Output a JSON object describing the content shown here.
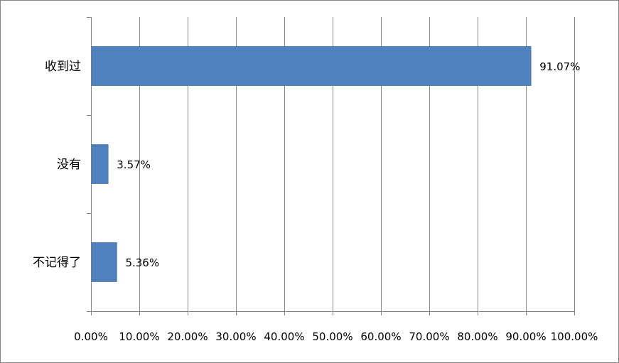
{
  "chart_data": {
    "type": "bar",
    "orientation": "horizontal",
    "categories": [
      "收到过",
      "没有",
      "不记得了"
    ],
    "values": [
      91.07,
      3.57,
      5.36
    ],
    "data_labels": [
      "91.07%",
      "3.57%",
      "5.36%"
    ],
    "xlim": [
      0,
      100
    ],
    "x_ticks": [
      0,
      10,
      20,
      30,
      40,
      50,
      60,
      70,
      80,
      90,
      100
    ],
    "x_tick_labels": [
      "0.00%",
      "10.00%",
      "20.00%",
      "30.00%",
      "40.00%",
      "50.00%",
      "60.00%",
      "70.00%",
      "80.00%",
      "90.00%",
      "100.00%"
    ],
    "title": "",
    "xlabel": "",
    "ylabel": "",
    "grid": "vertical",
    "legend": "none",
    "bar_color": "#4F81BD",
    "grid_color": "#868686"
  }
}
